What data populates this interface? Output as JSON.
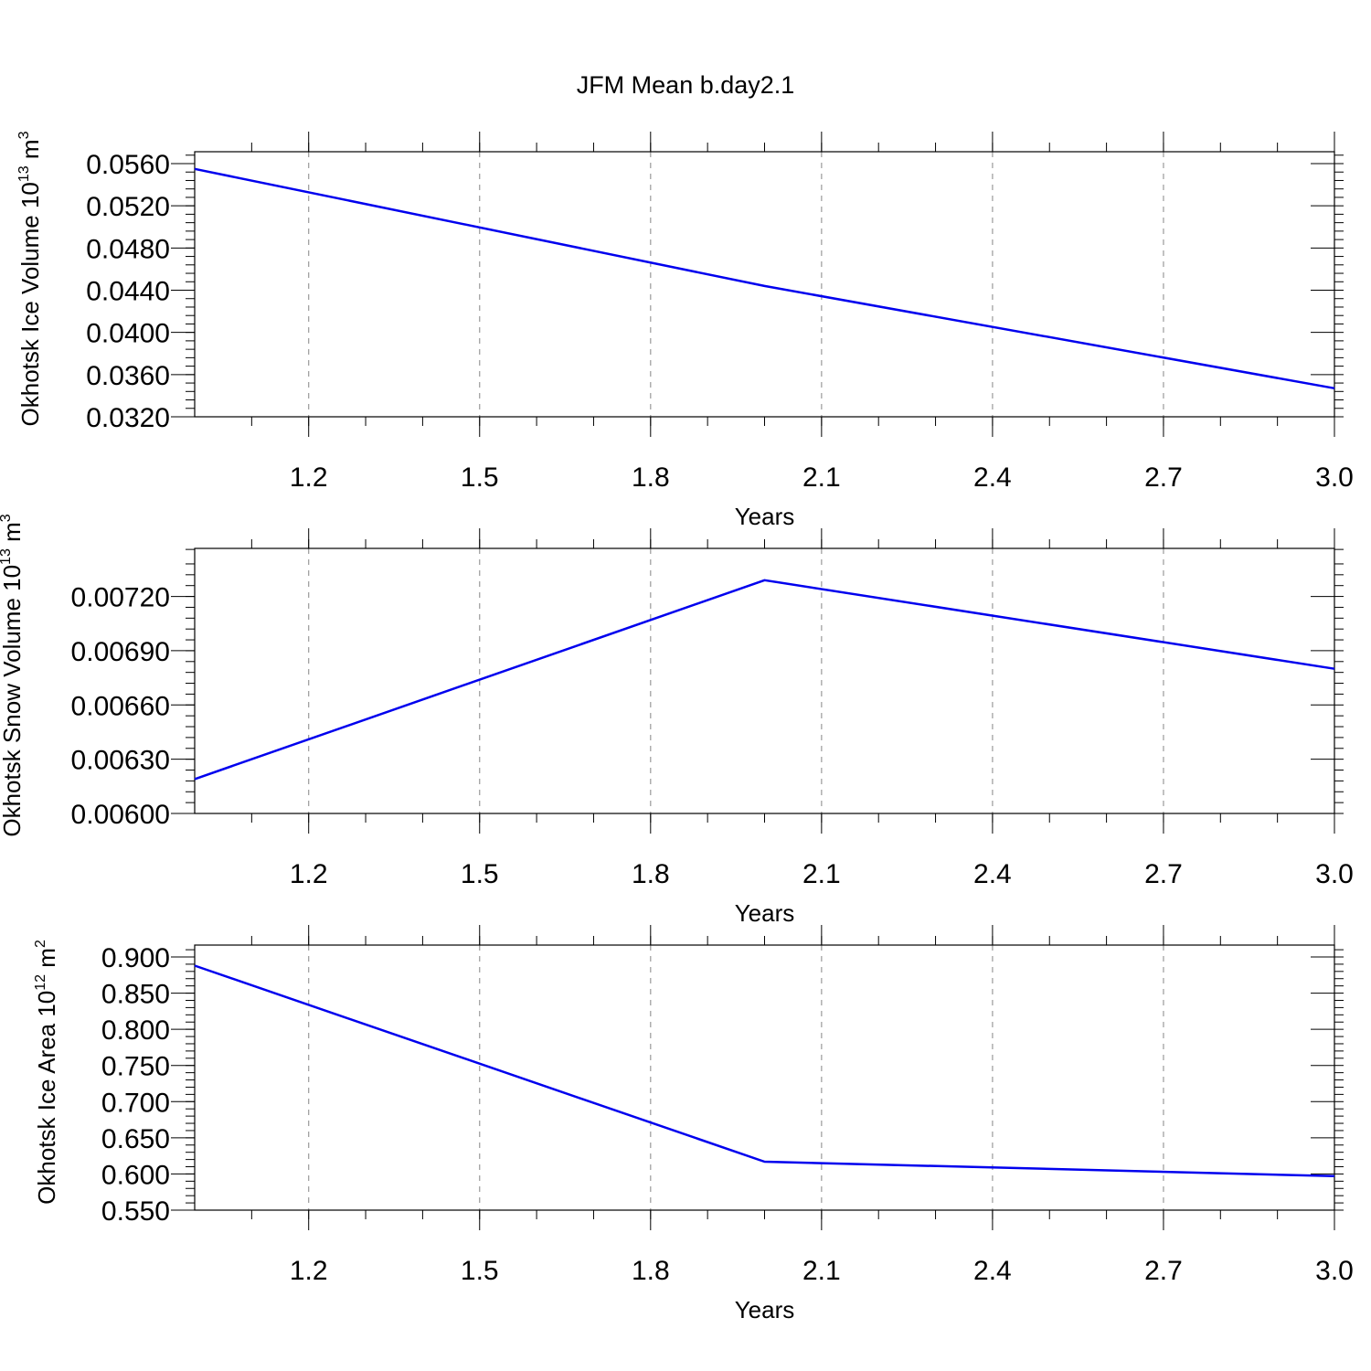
{
  "title": "JFM Mean b.day2.1",
  "colors": {
    "series": "#0000ee",
    "grid": "#9a9a9a",
    "axes": "#000000"
  },
  "chart_data": [
    {
      "type": "line",
      "xlabel": "Years",
      "ylabel": {
        "text": "Okhotsk Ice Volume 10",
        "sup": "13",
        "unit": " m",
        "unit_sup": "3"
      },
      "xlim": [
        1.0,
        3.0
      ],
      "ylim": [
        0.032,
        0.056
      ],
      "xticks": [
        "1.2",
        "1.5",
        "1.8",
        "2.1",
        "2.4",
        "2.7",
        "3.0"
      ],
      "yticks": [
        "0.0320",
        "0.0360",
        "0.0400",
        "0.0440",
        "0.0480",
        "0.0520",
        "0.0560"
      ],
      "grid": true,
      "series": [
        {
          "x": [
            1.0,
            2.0,
            3.0
          ],
          "y": [
            0.0555,
            0.0444,
            0.0347
          ]
        }
      ]
    },
    {
      "type": "line",
      "xlabel": "Years",
      "ylabel": {
        "text": "Okhotsk Snow Volume 10",
        "sup": "13",
        "unit": " m",
        "unit_sup": "3"
      },
      "xlim": [
        1.0,
        3.0
      ],
      "ylim": [
        0.006,
        0.0074
      ],
      "xticks": [
        "1.2",
        "1.5",
        "1.8",
        "2.1",
        "2.4",
        "2.7",
        "3.0"
      ],
      "yticks": [
        "0.00600",
        "0.00630",
        "0.00660",
        "0.00690",
        "0.00720"
      ],
      "grid": true,
      "series": [
        {
          "x": [
            1.0,
            2.0,
            3.0
          ],
          "y": [
            0.00619,
            0.00729,
            0.0068
          ]
        }
      ]
    },
    {
      "type": "line",
      "xlabel": "Years",
      "ylabel": {
        "text": "Okhotsk Ice Area 10",
        "sup": "12",
        "unit": " m",
        "unit_sup": "2"
      },
      "xlim": [
        1.0,
        3.0
      ],
      "ylim": [
        0.55,
        0.9
      ],
      "xticks": [
        "1.2",
        "1.5",
        "1.8",
        "2.1",
        "2.4",
        "2.7",
        "3.0"
      ],
      "yticks": [
        "0.550",
        "0.600",
        "0.650",
        "0.700",
        "0.750",
        "0.800",
        "0.850",
        "0.900"
      ],
      "grid": true,
      "series": [
        {
          "x": [
            1.0,
            2.0,
            3.0
          ],
          "y": [
            0.888,
            0.617,
            0.597
          ]
        }
      ]
    }
  ]
}
